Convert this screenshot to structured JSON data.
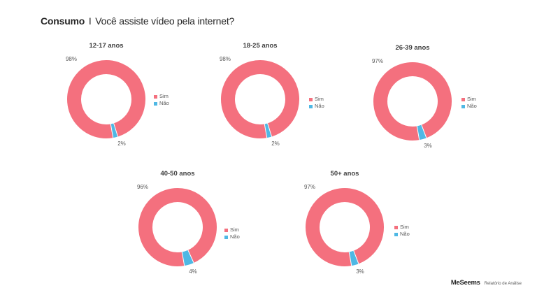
{
  "page": {
    "title_strong": "Consumo",
    "title_sep": "I",
    "title_rest": "Você assiste vídeo pela internet?"
  },
  "footer": {
    "brand": "MeSeems",
    "report": "Relatório de Análise"
  },
  "colors": {
    "sim": "#f4707e",
    "nao": "#4fb8e4"
  },
  "chart_data": [
    {
      "type": "pie",
      "title": "12-17 anos",
      "categories": [
        "Sim",
        "Não"
      ],
      "values": [
        98,
        2
      ],
      "labels": [
        "98%",
        "2%"
      ],
      "legend": "right"
    },
    {
      "type": "pie",
      "title": "18-25 anos",
      "categories": [
        "Sim",
        "Não"
      ],
      "values": [
        98,
        2
      ],
      "labels": [
        "98%",
        "2%"
      ],
      "legend": "right"
    },
    {
      "type": "pie",
      "title": "26-39 anos",
      "categories": [
        "Sim",
        "Não"
      ],
      "values": [
        97,
        3
      ],
      "labels": [
        "97%",
        "3%"
      ],
      "legend": "right"
    },
    {
      "type": "pie",
      "title": "40-50 anos",
      "categories": [
        "Sim",
        "Não"
      ],
      "values": [
        96,
        4
      ],
      "labels": [
        "96%",
        "4%"
      ],
      "legend": "right"
    },
    {
      "type": "pie",
      "title": "50+ anos",
      "categories": [
        "Sim",
        "Não"
      ],
      "values": [
        97,
        3
      ],
      "labels": [
        "97%",
        "3%"
      ],
      "legend": "right"
    }
  ]
}
